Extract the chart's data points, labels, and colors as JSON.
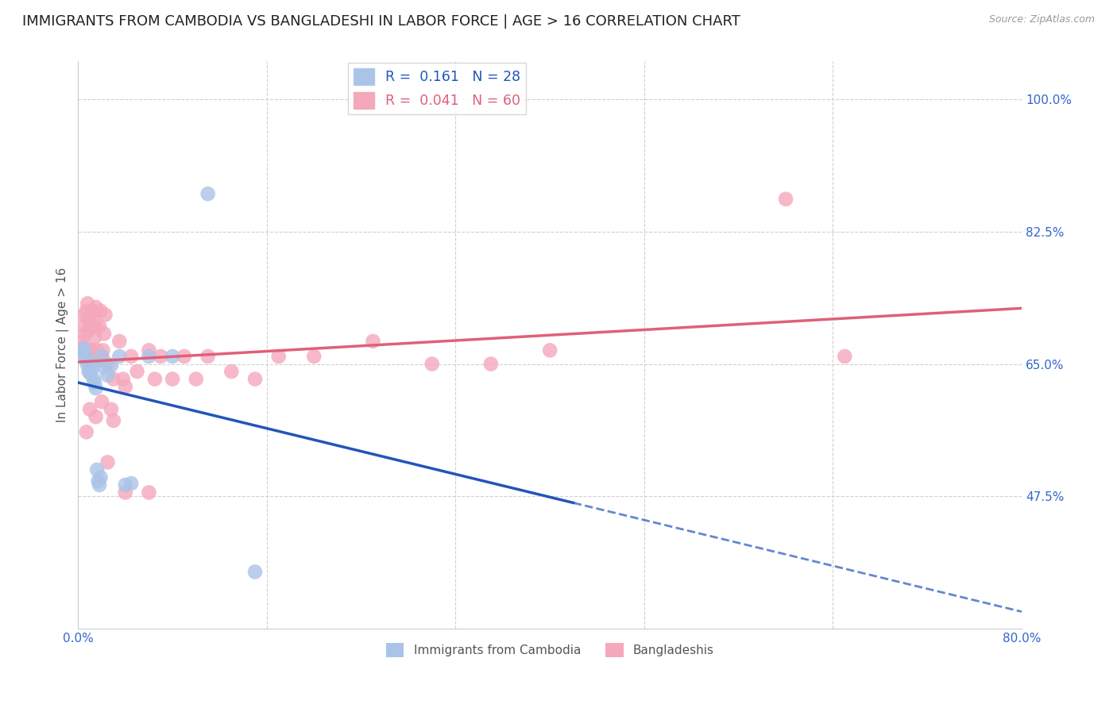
{
  "title": "IMMIGRANTS FROM CAMBODIA VS BANGLADESHI IN LABOR FORCE | AGE > 16 CORRELATION CHART",
  "source": "Source: ZipAtlas.com",
  "ylabel": "In Labor Force | Age > 16",
  "xlim": [
    0.0,
    0.8
  ],
  "ylim": [
    0.3,
    1.05
  ],
  "xtick_values": [
    0.0,
    0.16,
    0.32,
    0.48,
    0.64,
    0.8
  ],
  "xticklabels": [
    "0.0%",
    "",
    "",
    "",
    "",
    "80.0%"
  ],
  "ytick_values": [
    0.475,
    0.65,
    0.825,
    1.0
  ],
  "ytick_labels": [
    "47.5%",
    "65.0%",
    "82.5%",
    "100.0%"
  ],
  "grid_color": "#d0d0d0",
  "background_color": "#ffffff",
  "title_fontsize": 13,
  "axis_label_fontsize": 11,
  "tick_fontsize": 11,
  "cambodia_color": "#aac4e8",
  "bangladeshi_color": "#f5a8bc",
  "cambodia_line_color": "#2255bb",
  "bangladeshi_line_color": "#e0607a",
  "R_cambodia": 0.161,
  "N_cambodia": 28,
  "R_bangladeshi": 0.041,
  "N_bangladeshi": 60,
  "cambodia_x": [
    0.003,
    0.004,
    0.005,
    0.006,
    0.007,
    0.008,
    0.009,
    0.01,
    0.011,
    0.012,
    0.013,
    0.014,
    0.015,
    0.016,
    0.017,
    0.018,
    0.019,
    0.02,
    0.022,
    0.025,
    0.028,
    0.035,
    0.04,
    0.045,
    0.06,
    0.08,
    0.11,
    0.15
  ],
  "cambodia_y": [
    0.668,
    0.665,
    0.67,
    0.66,
    0.655,
    0.648,
    0.64,
    0.638,
    0.65,
    0.645,
    0.63,
    0.625,
    0.618,
    0.51,
    0.495,
    0.49,
    0.5,
    0.66,
    0.645,
    0.635,
    0.648,
    0.66,
    0.49,
    0.492,
    0.66,
    0.66,
    0.875,
    0.375
  ],
  "bangladeshi_x": [
    0.003,
    0.004,
    0.005,
    0.005,
    0.006,
    0.007,
    0.008,
    0.008,
    0.009,
    0.01,
    0.01,
    0.011,
    0.012,
    0.012,
    0.013,
    0.013,
    0.014,
    0.015,
    0.015,
    0.016,
    0.017,
    0.018,
    0.019,
    0.02,
    0.021,
    0.022,
    0.023,
    0.025,
    0.028,
    0.03,
    0.035,
    0.038,
    0.04,
    0.045,
    0.05,
    0.06,
    0.065,
    0.07,
    0.08,
    0.09,
    0.1,
    0.11,
    0.13,
    0.15,
    0.17,
    0.2,
    0.25,
    0.3,
    0.35,
    0.4,
    0.007,
    0.01,
    0.015,
    0.02,
    0.025,
    0.03,
    0.04,
    0.06,
    0.6,
    0.65
  ],
  "bangladeshi_y": [
    0.68,
    0.672,
    0.7,
    0.715,
    0.69,
    0.72,
    0.73,
    0.71,
    0.695,
    0.668,
    0.705,
    0.668,
    0.7,
    0.72,
    0.715,
    0.7,
    0.685,
    0.7,
    0.725,
    0.668,
    0.655,
    0.7,
    0.72,
    0.66,
    0.668,
    0.69,
    0.715,
    0.65,
    0.59,
    0.63,
    0.68,
    0.63,
    0.62,
    0.66,
    0.64,
    0.668,
    0.63,
    0.66,
    0.63,
    0.66,
    0.63,
    0.66,
    0.64,
    0.63,
    0.66,
    0.66,
    0.68,
    0.65,
    0.65,
    0.668,
    0.56,
    0.59,
    0.58,
    0.6,
    0.52,
    0.575,
    0.48,
    0.48,
    0.868,
    0.66
  ]
}
